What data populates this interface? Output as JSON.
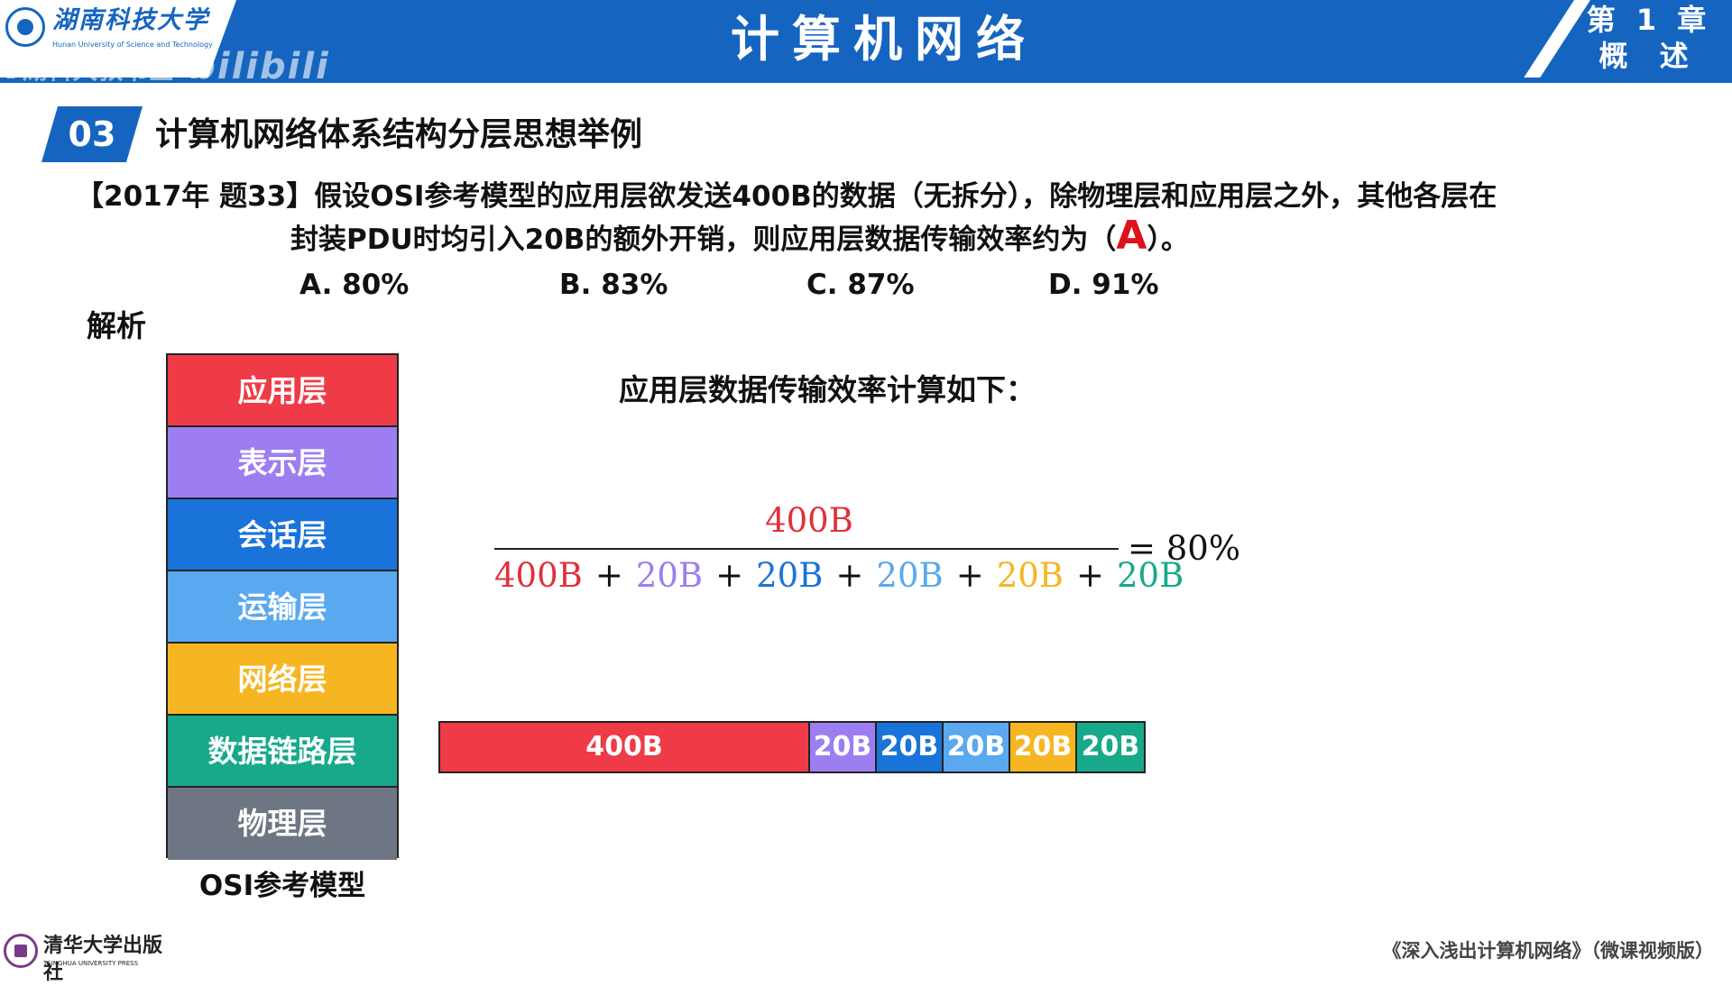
{
  "header": {
    "university_name": "湖南科技大学",
    "university_name_en": "Hunan University of Science and Technology",
    "course_title": "计算机网络",
    "chapter_label": "第 1 章",
    "chapter_name": "概 述",
    "watermark_text": "湖科大教书匠",
    "watermark_brand": "bilibili"
  },
  "section": {
    "number": "03",
    "title": "计算机网络体系结构分层思想举例"
  },
  "question": {
    "line1": "【2017年 题33】假设OSI参考模型的应用层欲发送400B的数据（无拆分），除物理层和应用层之外，其他各层在",
    "line2_before": "封装PDU时均引入20B的额外开销，则应用层数据传输效率约为（",
    "answer": "A",
    "line2_after": "）。",
    "options": [
      {
        "label": "A. 80%"
      },
      {
        "label": "B. 83%"
      },
      {
        "label": "C. 87%"
      },
      {
        "label": "D. 91%"
      }
    ]
  },
  "analysis_label": "解析",
  "osi_model": {
    "caption": "OSI参考模型",
    "layers": [
      {
        "name": "应用层",
        "color": "#ef3b47"
      },
      {
        "name": "表示层",
        "color": "#9c7ef0"
      },
      {
        "name": "会话层",
        "color": "#1a73d9"
      },
      {
        "name": "运输层",
        "color": "#5aa8ef"
      },
      {
        "name": "网络层",
        "color": "#f5b621"
      },
      {
        "name": "数据链路层",
        "color": "#17a98a"
      },
      {
        "name": "物理层",
        "color": "#6f7683"
      }
    ]
  },
  "calculation": {
    "heading": "应用层数据传输效率计算如下：",
    "numerator": "400B",
    "denominator_terms": [
      {
        "text": "400B",
        "color": "#e0313c"
      },
      {
        "text": "20B",
        "color": "#9c7ef0"
      },
      {
        "text": "20B",
        "color": "#1a73d9"
      },
      {
        "text": "20B",
        "color": "#5aa8ef"
      },
      {
        "text": "20B",
        "color": "#f5b621"
      },
      {
        "text": "20B",
        "color": "#17a98a"
      }
    ],
    "operator": "+",
    "result": "= 80%"
  },
  "packet": {
    "segments": [
      {
        "label": "400B",
        "color": "#ef3b47",
        "bytes": 400
      },
      {
        "label": "20B",
        "color": "#9c7ef0",
        "bytes": 20
      },
      {
        "label": "20B",
        "color": "#1a73d9",
        "bytes": 20
      },
      {
        "label": "20B",
        "color": "#5aa8ef",
        "bytes": 20
      },
      {
        "label": "20B",
        "color": "#f5b621",
        "bytes": 20
      },
      {
        "label": "20B",
        "color": "#17a98a",
        "bytes": 20
      }
    ]
  },
  "footer": {
    "publisher": "清华大学出版社",
    "publisher_en": "TSINGHUA UNIVERSITY PRESS",
    "book_title": "《深入浅出计算机网络》（微课视频版）"
  },
  "colors": {
    "brand_blue": "#1565c0",
    "answer_red": "#e0101c"
  }
}
